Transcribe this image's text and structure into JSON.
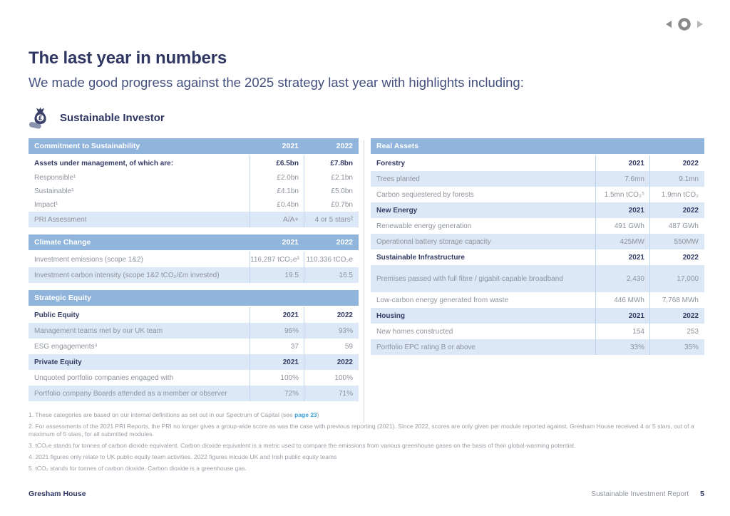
{
  "page": {
    "title": "The last year in numbers",
    "subtitle": "We made good progress against the 2025 strategy last year with highlights including:",
    "section_label": "Sustainable Investor"
  },
  "nav": {
    "prev_icon": "left-arrow",
    "home_icon": "circle",
    "next_icon": "right-arrow"
  },
  "colors": {
    "header_blue": "#90b4db",
    "row_light_blue": "#dce8f5",
    "navy": "#2e3661",
    "text_gray": "#8e939c",
    "link_blue": "#3da0d9"
  },
  "columns": [
    "2021",
    "2022"
  ],
  "tables_left": [
    {
      "title": "Commitment to Sustainability",
      "header_years": true,
      "rows": [
        {
          "label": "Assets under management, of which are:",
          "v1": "£6.5bn",
          "v2": "£7.8bn",
          "style": "bold"
        },
        {
          "label": "Responsible¹",
          "v1": "£2.0bn",
          "v2": "£2.1bn",
          "style": "sub"
        },
        {
          "label": "Sustainable¹",
          "v1": "£4.1bn",
          "v2": "£5.0bn",
          "style": "sub"
        },
        {
          "label": "Impact¹",
          "v1": "£0.4bn",
          "v2": "£0.7bn",
          "style": "sub"
        },
        {
          "label": "PRI Assessment",
          "v1": "A/A+",
          "v2": "4 or 5 stars²",
          "style": "alt"
        }
      ]
    },
    {
      "title": "Climate Change",
      "header_years": true,
      "rows": [
        {
          "label": "Investment emissions (scope 1&2)",
          "v1": "116,287 tCO₂e³",
          "v2": "110,336 tCO₂e"
        },
        {
          "label": "Investment carbon intensity (scope 1&2 tCO₂/£m invested)",
          "v1": "19.5",
          "v2": "16.5",
          "style": "alt"
        }
      ]
    },
    {
      "title": "Strategic Equity",
      "header_years": false,
      "rows": [
        {
          "label": "Public Equity",
          "v1": "2021",
          "v2": "2022",
          "style": "bold"
        },
        {
          "label": "Management teams met by our UK team",
          "v1": "96%",
          "v2": "93%",
          "style": "alt"
        },
        {
          "label": "ESG engagements⁴",
          "v1": "37",
          "v2": "59"
        },
        {
          "label": "Private Equity",
          "v1": "2021",
          "v2": "2022",
          "style": "bold alt"
        },
        {
          "label": "Unquoted portfolio companies engaged with",
          "v1": "100%",
          "v2": "100%"
        },
        {
          "label": "Portfolio company Boards attended as a member or observer",
          "v1": "72%",
          "v2": "71%",
          "style": "alt"
        }
      ]
    }
  ],
  "tables_right": [
    {
      "title": "Real Assets",
      "header_years": false,
      "rows": [
        {
          "label": "Forestry",
          "v1": "2021",
          "v2": "2022",
          "style": "bold"
        },
        {
          "label": "Trees planted",
          "v1": "7.6mn",
          "v2": "9.1mn",
          "style": "alt"
        },
        {
          "label": "Carbon sequestered by forests",
          "v1": "1.5mn tCO₂⁵",
          "v2": "1.9mn tCO₂"
        },
        {
          "label": "New Energy",
          "v1": "2021",
          "v2": "2022",
          "style": "bold alt"
        },
        {
          "label": "Renewable energy generation",
          "v1": "491 GWh",
          "v2": "487 GWh"
        },
        {
          "label": "Operational battery storage capacity",
          "v1": "425MW",
          "v2": "550MW",
          "style": "alt"
        },
        {
          "label": "Sustainable Infrastructure",
          "v1": "2021",
          "v2": "2022",
          "style": "bold"
        },
        {
          "label": "Premises passed with full fibre / gigabit-capable broadband",
          "v1": "2,430",
          "v2": "17,000",
          "style": "alt tall"
        },
        {
          "label": "Low-carbon energy generated from waste",
          "v1": "446 MWh",
          "v2": "7,768 MWh"
        },
        {
          "label": "Housing",
          "v1": "2021",
          "v2": "2022",
          "style": "bold alt"
        },
        {
          "label": "New homes constructed",
          "v1": "154",
          "v2": "253"
        },
        {
          "label": "Portfolio EPC rating B or above",
          "v1": "33%",
          "v2": "35%",
          "style": "alt"
        }
      ]
    }
  ],
  "footnotes": {
    "fn1_before": "1. These categories are based on our internal definitions as set out in our Spectrum of Capital (see ",
    "fn1_link": "page 23",
    "fn1_after": ")",
    "fn2": "2. For assessments of the 2021 PRI Reports, the PRI no longer gives a group-wide score as was the case with previous reporting (2021). Since 2022, scores are only given per module reported against. Gresham House received 4 or 5 stars, out of a maximum of 5 stars, for all submitted modules.",
    "fn3": "3. tCO₂e stands for tonnes of carbon dioxide equivalent. Carbon dioxide equivalent is a metric used to compare the emissions from various greenhouse gases on the basis of their global-warming potential.",
    "fn4": "4. 2021 figures only relate to UK public equity team activities. 2022 figures inlcude UK and Irish public equity teams",
    "fn5": "5. tCO₂ stands for tonnes of carbon dioxide. Carbon dioxide is a greenhouse gas."
  },
  "footer": {
    "brand": "Gresham House",
    "report_title": "Sustainable Investment Report",
    "page_number": "5"
  }
}
